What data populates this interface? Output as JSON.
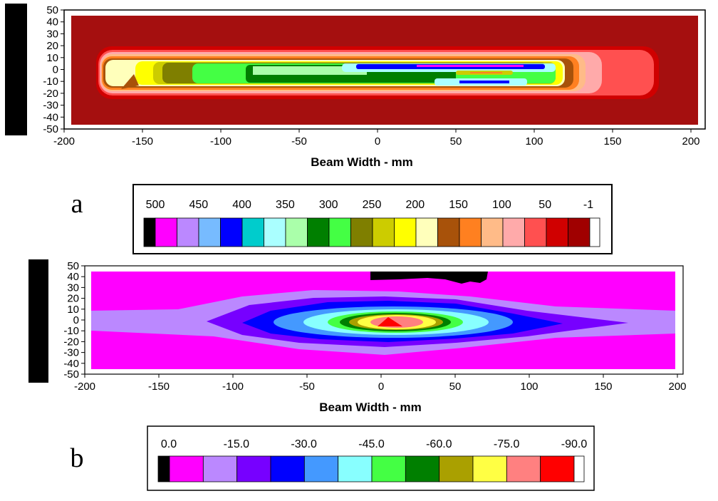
{
  "chart_data": [
    {
      "id": "a",
      "type": "heatmap",
      "panel_label": "a",
      "xlabel": "Beam Width - mm",
      "ylabel": "",
      "xlim": [
        -200,
        205
      ],
      "ylim": [
        -50,
        50
      ],
      "xticks": [
        -200,
        -150,
        -100,
        -50,
        0,
        50,
        100,
        150,
        200
      ],
      "yticks": [
        50,
        40,
        30,
        20,
        10,
        0,
        -10,
        -20,
        -30,
        -40,
        -50
      ],
      "background_color": "#a50f0f",
      "colorbar": {
        "labels": [
          "500",
          "450",
          "400",
          "350",
          "300",
          "250",
          "200",
          "150",
          "100",
          "50",
          "-1"
        ],
        "colors": [
          "#000000",
          "#ff00ff",
          "#bb88ff",
          "#77bbff",
          "#0000ff",
          "#00cccc",
          "#aaffff",
          "#aaffaa",
          "#007f00",
          "#44ff44",
          "#7f7f00",
          "#cccc00",
          "#ffff00",
          "#ffffbb",
          "#a8520a",
          "#ff8020",
          "#ffbb88",
          "#ffaaaa",
          "#ff5050",
          "#d00000",
          "#a00000",
          "#ffffff"
        ]
      }
    },
    {
      "id": "b",
      "type": "heatmap",
      "panel_label": "b",
      "xlabel": "Beam Width - mm",
      "ylabel": "",
      "xlim": [
        -200,
        205
      ],
      "ylim": [
        -50,
        50
      ],
      "xticks": [
        -200,
        -150,
        -100,
        -50,
        0,
        50,
        100,
        150,
        200
      ],
      "yticks": [
        50,
        40,
        30,
        20,
        10,
        0,
        -10,
        -20,
        -30,
        -40,
        -50
      ],
      "background_color": "#ff00ff",
      "colorbar": {
        "labels": [
          "0.0",
          "-15.0",
          "-30.0",
          "-45.0",
          "-60.0",
          "-75.0",
          "-90.0"
        ],
        "colors": [
          "#000000",
          "#ff00ff",
          "#bb88ff",
          "#7700ff",
          "#0000ff",
          "#4499ff",
          "#88ffff",
          "#44ff44",
          "#007f00",
          "#aaa000",
          "#ffff44",
          "#ff8080",
          "#ff0000",
          "#ffffff"
        ]
      }
    }
  ]
}
